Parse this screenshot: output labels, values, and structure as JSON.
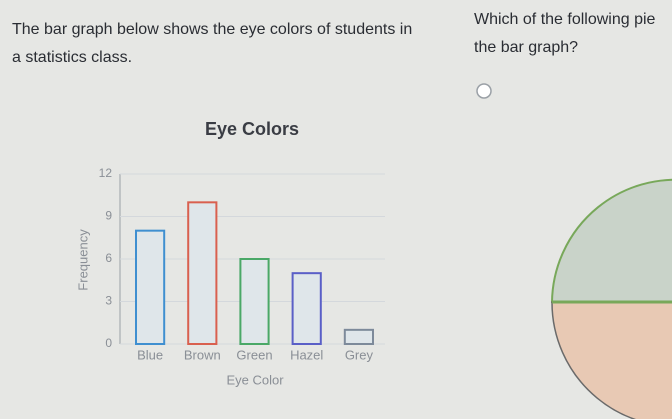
{
  "left_text": {
    "lines": [
      "The bar graph below shows the eye colors of students in",
      "a statistics class."
    ]
  },
  "right_text": {
    "lines": [
      "Which of the following pie",
      "the bar graph?"
    ]
  },
  "chart_data": {
    "type": "bar",
    "title": "Eye Colors",
    "x_label": "Eye Color",
    "y_label": "Frequency",
    "categories": [
      "Blue",
      "Brown",
      "Green",
      "Hazel",
      "Grey"
    ],
    "values": [
      8,
      10,
      6,
      5,
      1
    ],
    "colors": [
      "#3f8fd0",
      "#d9604f",
      "#4aa867",
      "#5a5fc7",
      "#7d8a9a"
    ],
    "fill": "#dfe6ea",
    "ylim": [
      0,
      12
    ],
    "yticks": [
      0,
      3,
      6,
      9,
      12
    ],
    "grid": true
  }
}
